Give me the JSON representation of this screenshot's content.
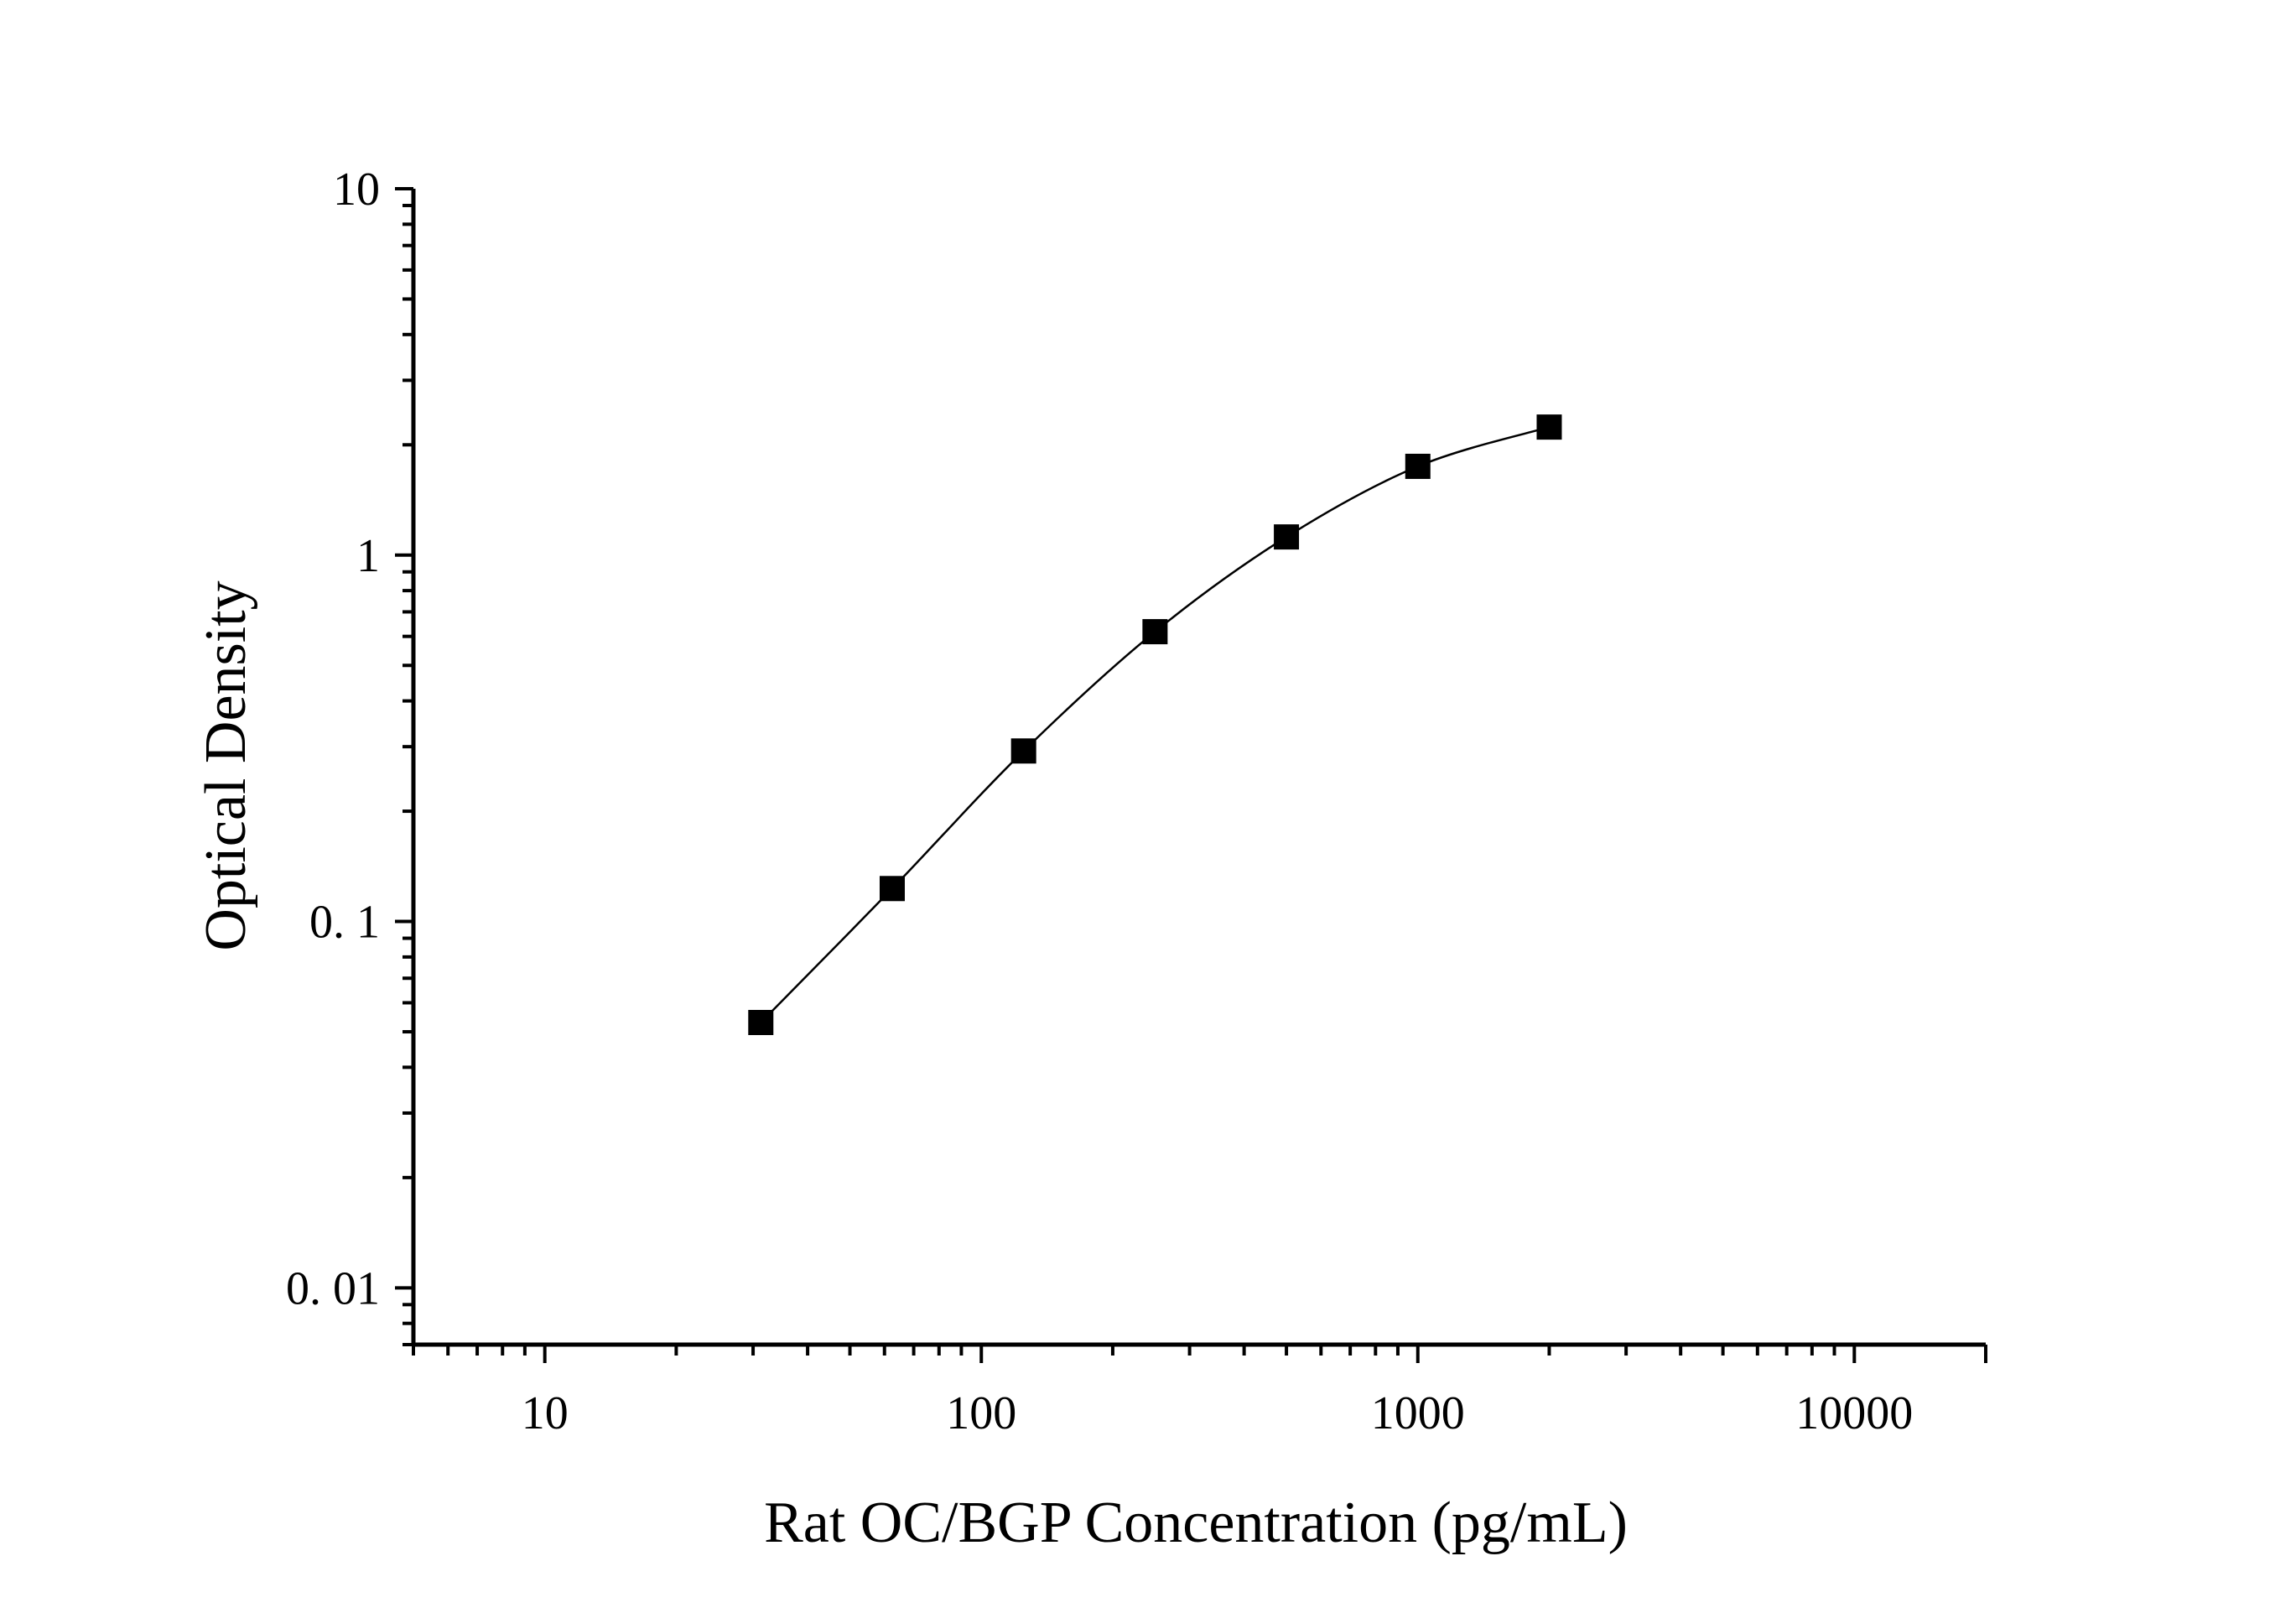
{
  "chart_data": {
    "type": "scatter",
    "title": "",
    "xlabel": "Rat OC/BGP Concentration (pg/mL)",
    "ylabel": "Optical Density",
    "x_scale": "log",
    "y_scale": "log",
    "xlim": [
      5,
      20000
    ],
    "ylim": [
      0.007,
      10
    ],
    "grid": false,
    "legend": "none",
    "x_ticks": [
      {
        "value": 10,
        "label": "10"
      },
      {
        "value": 100,
        "label": "100"
      },
      {
        "value": 1000,
        "label": "1000"
      },
      {
        "value": 10000,
        "label": "10000"
      }
    ],
    "y_ticks": [
      {
        "value": 0.01,
        "label": "0. 01"
      },
      {
        "value": 0.1,
        "label": "0. 1"
      },
      {
        "value": 1,
        "label": "1"
      },
      {
        "value": 10,
        "label": "10"
      }
    ],
    "series": [
      {
        "x": [
          31.25,
          62.5,
          125,
          250,
          500,
          1000,
          2000
        ],
        "y": [
          0.053,
          0.123,
          0.292,
          0.618,
          1.121,
          1.747,
          2.236
        ],
        "marker": "square",
        "color": "#000000",
        "fit_curve": true
      }
    ]
  }
}
